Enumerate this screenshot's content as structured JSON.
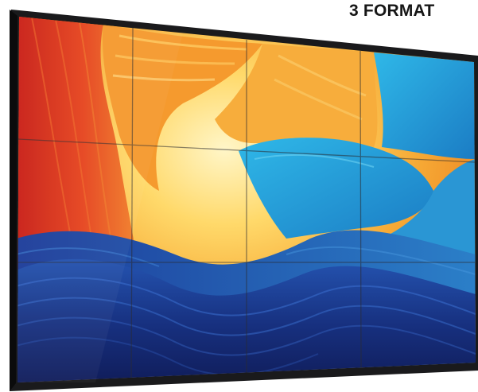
{
  "headline": "3 FORMAT",
  "colors": {
    "bezel": "#1a1a1c",
    "deep_red": "#d42a1a",
    "orange": "#f39a2a",
    "pale_yellow": "#ffe98a",
    "sky_blue": "#2aa6de",
    "navy": "#14206a"
  },
  "video_wall": {
    "columns": 4,
    "rows": 3
  }
}
